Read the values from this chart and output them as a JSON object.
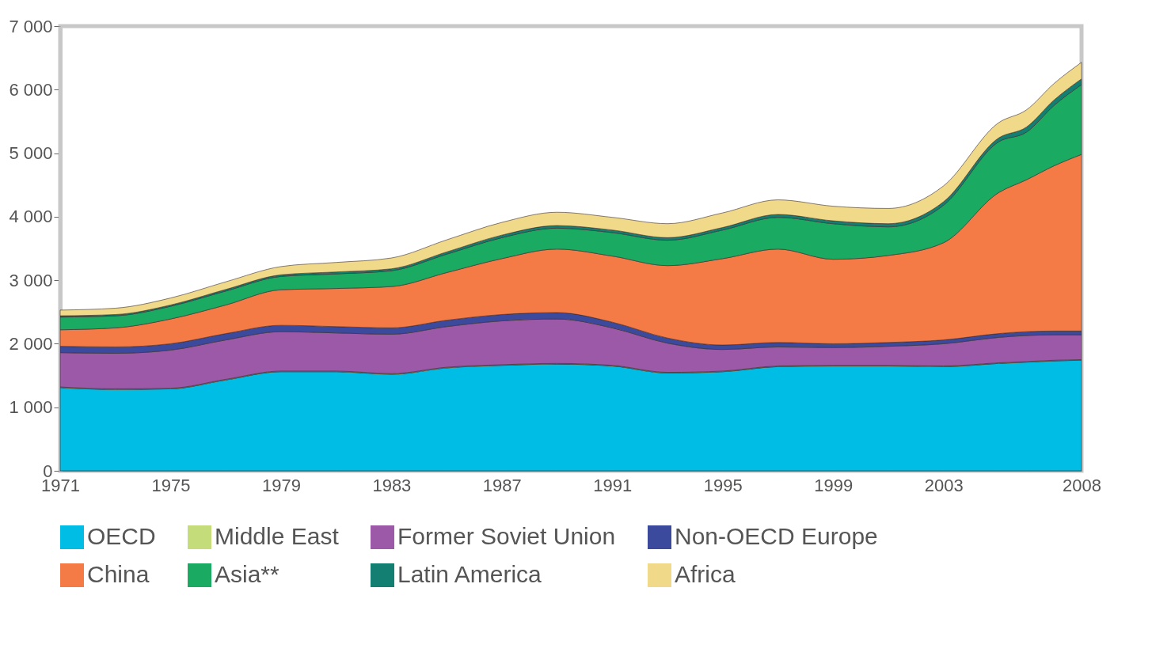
{
  "chart_data": {
    "type": "area",
    "stacked": true,
    "legend": "bottom",
    "grid": false,
    "x": [
      1971,
      1973,
      1975,
      1977,
      1979,
      1981,
      1983,
      1985,
      1987,
      1989,
      1991,
      1993,
      1995,
      1997,
      1999,
      2001,
      2003,
      2005,
      2006,
      2007,
      2008
    ],
    "xlim": [
      1971,
      2008
    ],
    "xticks": [
      1971,
      1975,
      1979,
      1983,
      1987,
      1991,
      1995,
      1999,
      2003,
      2008
    ],
    "ylim": [
      0,
      7000
    ],
    "yticks": [
      0,
      {
        "value": 1000,
        "label": "1 000"
      },
      {
        "value": 2000,
        "label": "2 000"
      },
      {
        "value": 3000,
        "label": "3 000"
      },
      {
        "value": 4000,
        "label": "4 000"
      },
      {
        "value": 5000,
        "label": "5 000"
      },
      {
        "value": 6000,
        "label": "6 000"
      },
      {
        "value": 7000,
        "label": "7 000"
      }
    ],
    "series": [
      {
        "name": "OECD",
        "color": "#00bde6",
        "values": [
          1310,
          1280,
          1290,
          1430,
          1560,
          1560,
          1520,
          1620,
          1660,
          1680,
          1650,
          1540,
          1560,
          1640,
          1650,
          1650,
          1640,
          1690,
          1710,
          1730,
          1740
        ]
      },
      {
        "name": "Middle East",
        "color": "#c5dc7a",
        "values": [
          10,
          10,
          10,
          10,
          10,
          10,
          10,
          10,
          10,
          10,
          10,
          10,
          10,
          10,
          10,
          10,
          10,
          10,
          10,
          10,
          10
        ]
      },
      {
        "name": "Former Soviet Union",
        "color": "#9b59a8",
        "values": [
          540,
          560,
          600,
          620,
          620,
          600,
          620,
          640,
          690,
          700,
          590,
          460,
          340,
          300,
          280,
          300,
          350,
          400,
          410,
          400,
          390
        ]
      },
      {
        "name": "Non-OECD Europe",
        "color": "#3b4a9c",
        "values": [
          100,
          100,
          100,
          100,
          100,
          100,
          100,
          100,
          100,
          100,
          90,
          80,
          70,
          70,
          60,
          60,
          60,
          60,
          60,
          60,
          60
        ]
      },
      {
        "name": "China",
        "color": "#f47a46",
        "values": [
          260,
          300,
          390,
          450,
          560,
          600,
          650,
          750,
          880,
          1000,
          1040,
          1140,
          1360,
          1470,
          1330,
          1370,
          1530,
          2220,
          2390,
          2600,
          2780
        ]
      },
      {
        "name": "Asia**",
        "color": "#1aaa62",
        "values": [
          200,
          190,
          200,
          220,
          210,
          230,
          250,
          290,
          330,
          330,
          370,
          400,
          450,
          500,
          560,
          450,
          590,
          800,
          750,
          950,
          1100
        ]
      },
      {
        "name": "Latin America",
        "color": "#137f73",
        "values": [
          20,
          20,
          20,
          25,
          25,
          30,
          30,
          35,
          40,
          40,
          40,
          40,
          40,
          45,
          45,
          50,
          55,
          60,
          80,
          85,
          90
        ]
      },
      {
        "name": "Africa",
        "color": "#f0da8a",
        "values": [
          90,
          100,
          110,
          120,
          130,
          150,
          170,
          190,
          200,
          210,
          200,
          220,
          230,
          230,
          230,
          240,
          250,
          240,
          270,
          260,
          260
        ]
      }
    ]
  }
}
